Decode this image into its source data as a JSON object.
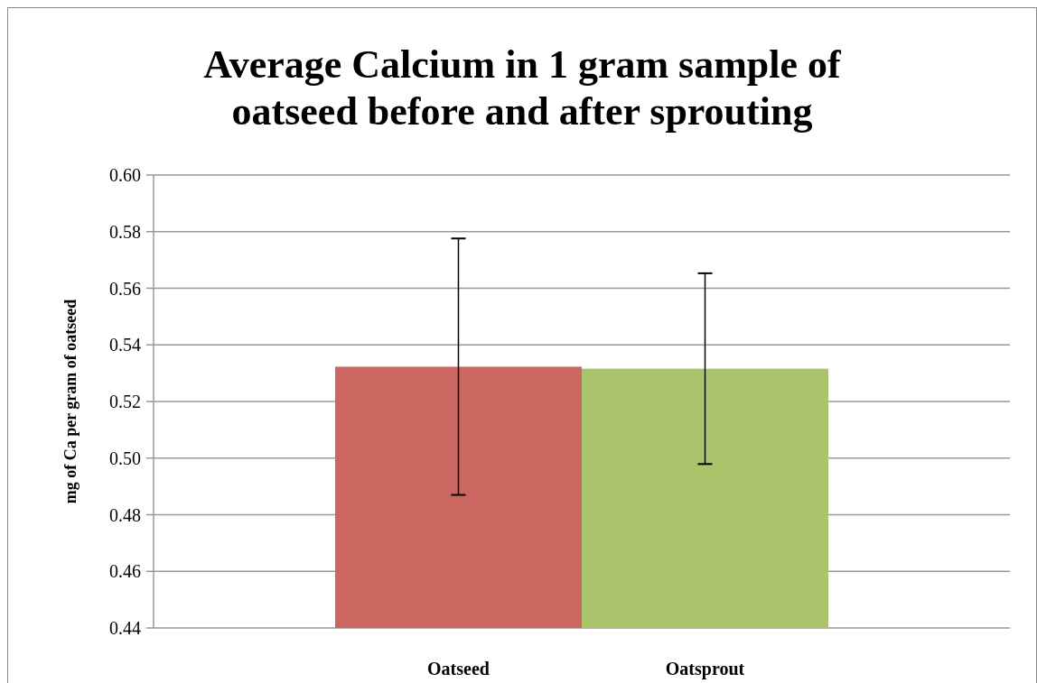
{
  "chart_data": {
    "type": "bar",
    "title": "Average Calcium in 1 gram sample of oatseed before and after sprouting",
    "ylabel": "mg of Ca per gram of oatseed",
    "categories": [
      "Oatseed",
      "Oatsprout"
    ],
    "values": [
      0.5323,
      0.5316
    ],
    "colors": [
      "#cc6660",
      "#aac46c"
    ],
    "errors": [
      0.0453,
      0.0337
    ],
    "ylim": [
      0.44,
      0.6
    ],
    "yticks": [
      {
        "value": 0.44,
        "label": "0.44"
      },
      {
        "value": 0.46,
        "label": "0.46"
      },
      {
        "value": 0.48,
        "label": "0.48"
      },
      {
        "value": 0.5,
        "label": "0.50"
      },
      {
        "value": 0.52,
        "label": "0.52"
      },
      {
        "value": 0.54,
        "label": "0.54"
      },
      {
        "value": 0.56,
        "label": "0.56"
      },
      {
        "value": 0.58,
        "label": "0.58"
      },
      {
        "value": 0.6,
        "label": "0.60"
      }
    ],
    "grid": "y"
  }
}
